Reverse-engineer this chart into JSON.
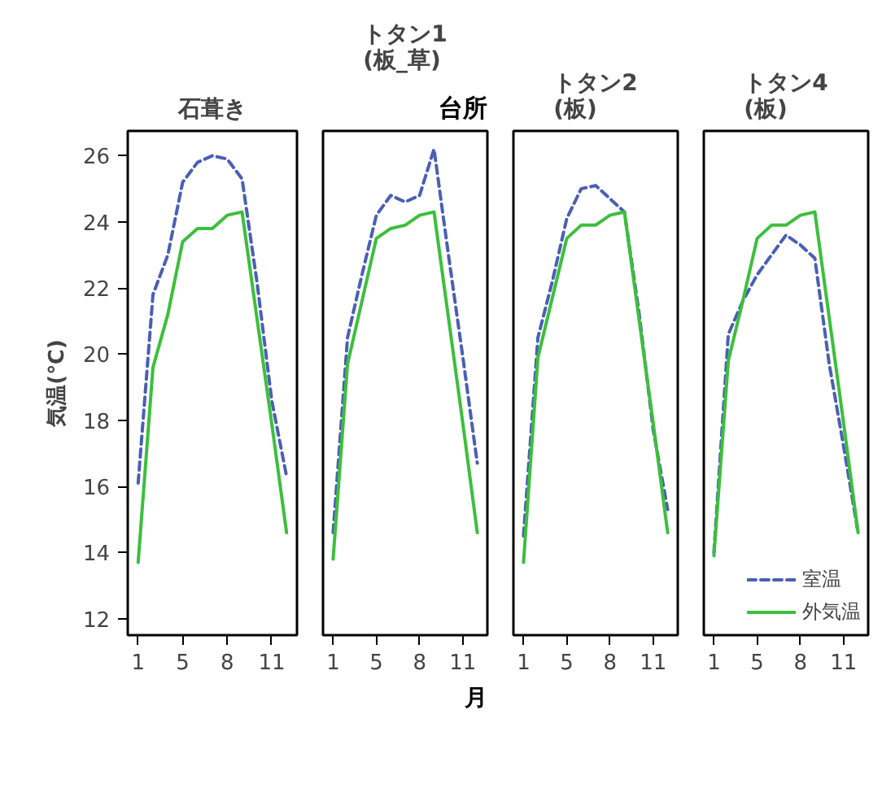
{
  "chart_data": [
    {
      "type": "line",
      "title": "石葺き",
      "ylabel": "気温(℃)",
      "categories": [
        "1",
        null,
        null,
        "5",
        null,
        null,
        "8",
        null,
        null,
        "11",
        null
      ],
      "ylim": [
        11.5,
        26.75
      ],
      "yticks": [
        12,
        14,
        16,
        18,
        20,
        22,
        24,
        26
      ],
      "grid": false,
      "series": [
        {
          "color": "#4a5fb5",
          "line_style": "dashed",
          "values": [
            16.1,
            21.8,
            23.0,
            25.2,
            25.8,
            26.0,
            25.9,
            25.3,
            22.2,
            18.6,
            16.3
          ]
        },
        {
          "color": "#3cbf3c",
          "line_style": "solid",
          "values": [
            13.7,
            19.6,
            21.2,
            23.4,
            23.8,
            23.8,
            24.2,
            24.3,
            21.1,
            17.9,
            14.6
          ]
        }
      ]
    },
    {
      "type": "line",
      "title": "トタン1\n(板_草)",
      "xlabel": "月",
      "annotations": [
        "台所"
      ],
      "categories": [
        "1",
        null,
        null,
        "5",
        null,
        null,
        "8",
        null,
        null,
        "11",
        null
      ],
      "ylim": [
        11.5,
        26.75
      ],
      "tick_labels": "x",
      "grid": false,
      "series": [
        {
          "color": "#4a5fb5",
          "line_style": "dashed",
          "values": [
            14.6,
            20.5,
            22.4,
            24.2,
            24.8,
            24.6,
            24.8,
            26.2,
            23.0,
            19.9,
            16.7
          ]
        },
        {
          "color": "#3cbf3c",
          "line_style": "solid",
          "values": [
            13.8,
            19.7,
            21.6,
            23.5,
            23.8,
            23.9,
            24.2,
            24.3,
            21.1,
            17.9,
            14.6
          ]
        }
      ]
    },
    {
      "type": "line",
      "title": "トタン2\n(板)",
      "categories": [
        "1",
        null,
        null,
        "5",
        null,
        null,
        "8",
        null,
        null,
        "11",
        null
      ],
      "ylim": [
        11.5,
        26.75
      ],
      "tick_labels": "x",
      "grid": false,
      "series": [
        {
          "color": "#4a5fb5",
          "line_style": "dashed",
          "values": [
            14.5,
            20.5,
            22.2,
            24.1,
            25.0,
            25.1,
            24.7,
            24.3,
            21.3,
            17.7,
            15.3
          ]
        },
        {
          "color": "#3cbf3c",
          "line_style": "solid",
          "values": [
            13.7,
            19.9,
            21.7,
            23.5,
            23.9,
            23.9,
            24.2,
            24.3,
            21.1,
            17.9,
            14.6
          ]
        }
      ]
    },
    {
      "type": "line",
      "title": "トタン4\n(板)",
      "categories": [
        "1",
        null,
        null,
        "5",
        null,
        null,
        "8",
        null,
        null,
        "11",
        null
      ],
      "ylim": [
        11.5,
        26.75
      ],
      "tick_labels": "x",
      "grid": false,
      "legend": "bottom right",
      "series": [
        {
          "name": "室温",
          "color": "#4a5fb5",
          "line_style": "dashed",
          "values": [
            14.0,
            20.6,
            21.6,
            22.4,
            23.0,
            23.6,
            23.3,
            22.9,
            19.7,
            17.2,
            14.6
          ]
        },
        {
          "name": "外気温",
          "color": "#3cbf3c",
          "line_style": "solid",
          "values": [
            13.9,
            19.8,
            21.6,
            23.5,
            23.9,
            23.9,
            24.2,
            24.3,
            21.1,
            17.9,
            14.6
          ]
        }
      ]
    }
  ]
}
